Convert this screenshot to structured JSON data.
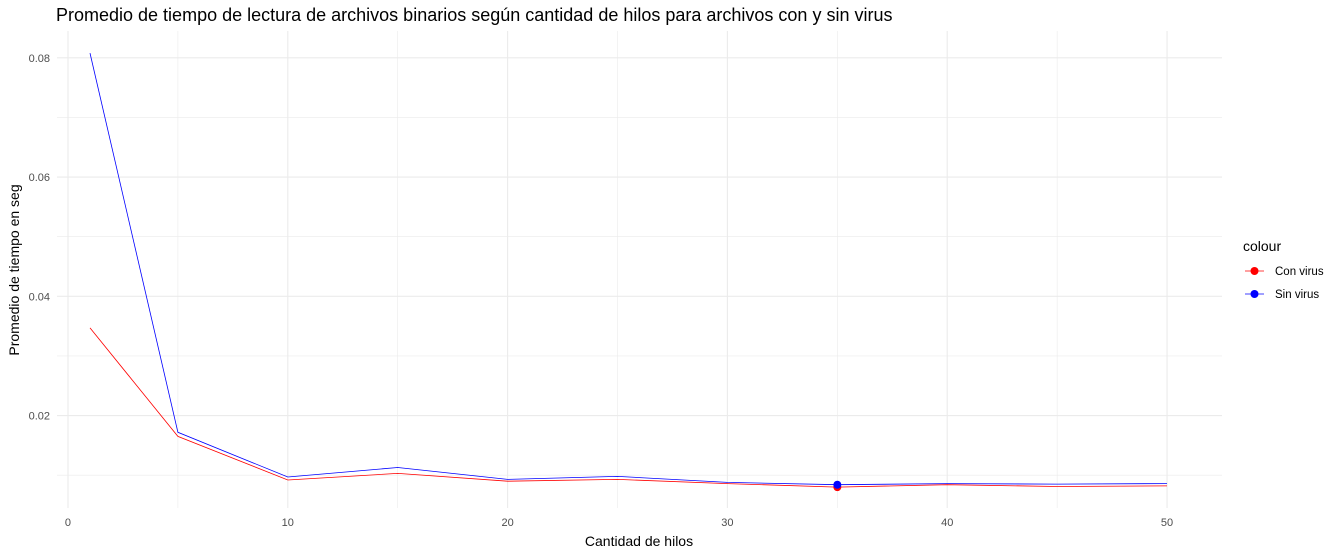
{
  "chart_data": {
    "type": "line",
    "title": "Promedio de tiempo de lectura de archivos binarios según cantidad de hilos para archivos con y sin virus",
    "xlabel": "Cantidad de hilos",
    "ylabel": "Promedio de tiempo en seg",
    "xlim": [
      -0.5,
      52.5
    ],
    "ylim": [
      0.0045,
      0.0845
    ],
    "x_ticks": [
      0,
      10,
      20,
      30,
      40,
      50
    ],
    "x_tick_labels": [
      "0",
      "10",
      "20",
      "30",
      "40",
      "50"
    ],
    "y_ticks": [
      0.02,
      0.04,
      0.06,
      0.08
    ],
    "y_tick_labels": [
      "0.02",
      "0.04",
      "0.06",
      "0.08"
    ],
    "grid": true,
    "legend": {
      "title": "colour",
      "position": "right"
    },
    "x": [
      1,
      5,
      10,
      15,
      20,
      25,
      30,
      35,
      40,
      45,
      50
    ],
    "series": [
      {
        "name": "Con virus",
        "color": "#ff0000",
        "values": [
          0.0347,
          0.0165,
          0.0092,
          0.0103,
          0.009,
          0.0093,
          0.0086,
          0.008,
          0.0084,
          0.0081,
          0.0082
        ]
      },
      {
        "name": "Sin virus",
        "color": "#0000ff",
        "values": [
          0.0808,
          0.0172,
          0.0097,
          0.0113,
          0.0093,
          0.0098,
          0.0088,
          0.0084,
          0.0086,
          0.0085,
          0.0086
        ]
      }
    ],
    "points": [
      {
        "series": "Con virus",
        "x": 35,
        "y": 0.008
      },
      {
        "series": "Sin virus",
        "x": 35,
        "y": 0.0084
      }
    ]
  }
}
